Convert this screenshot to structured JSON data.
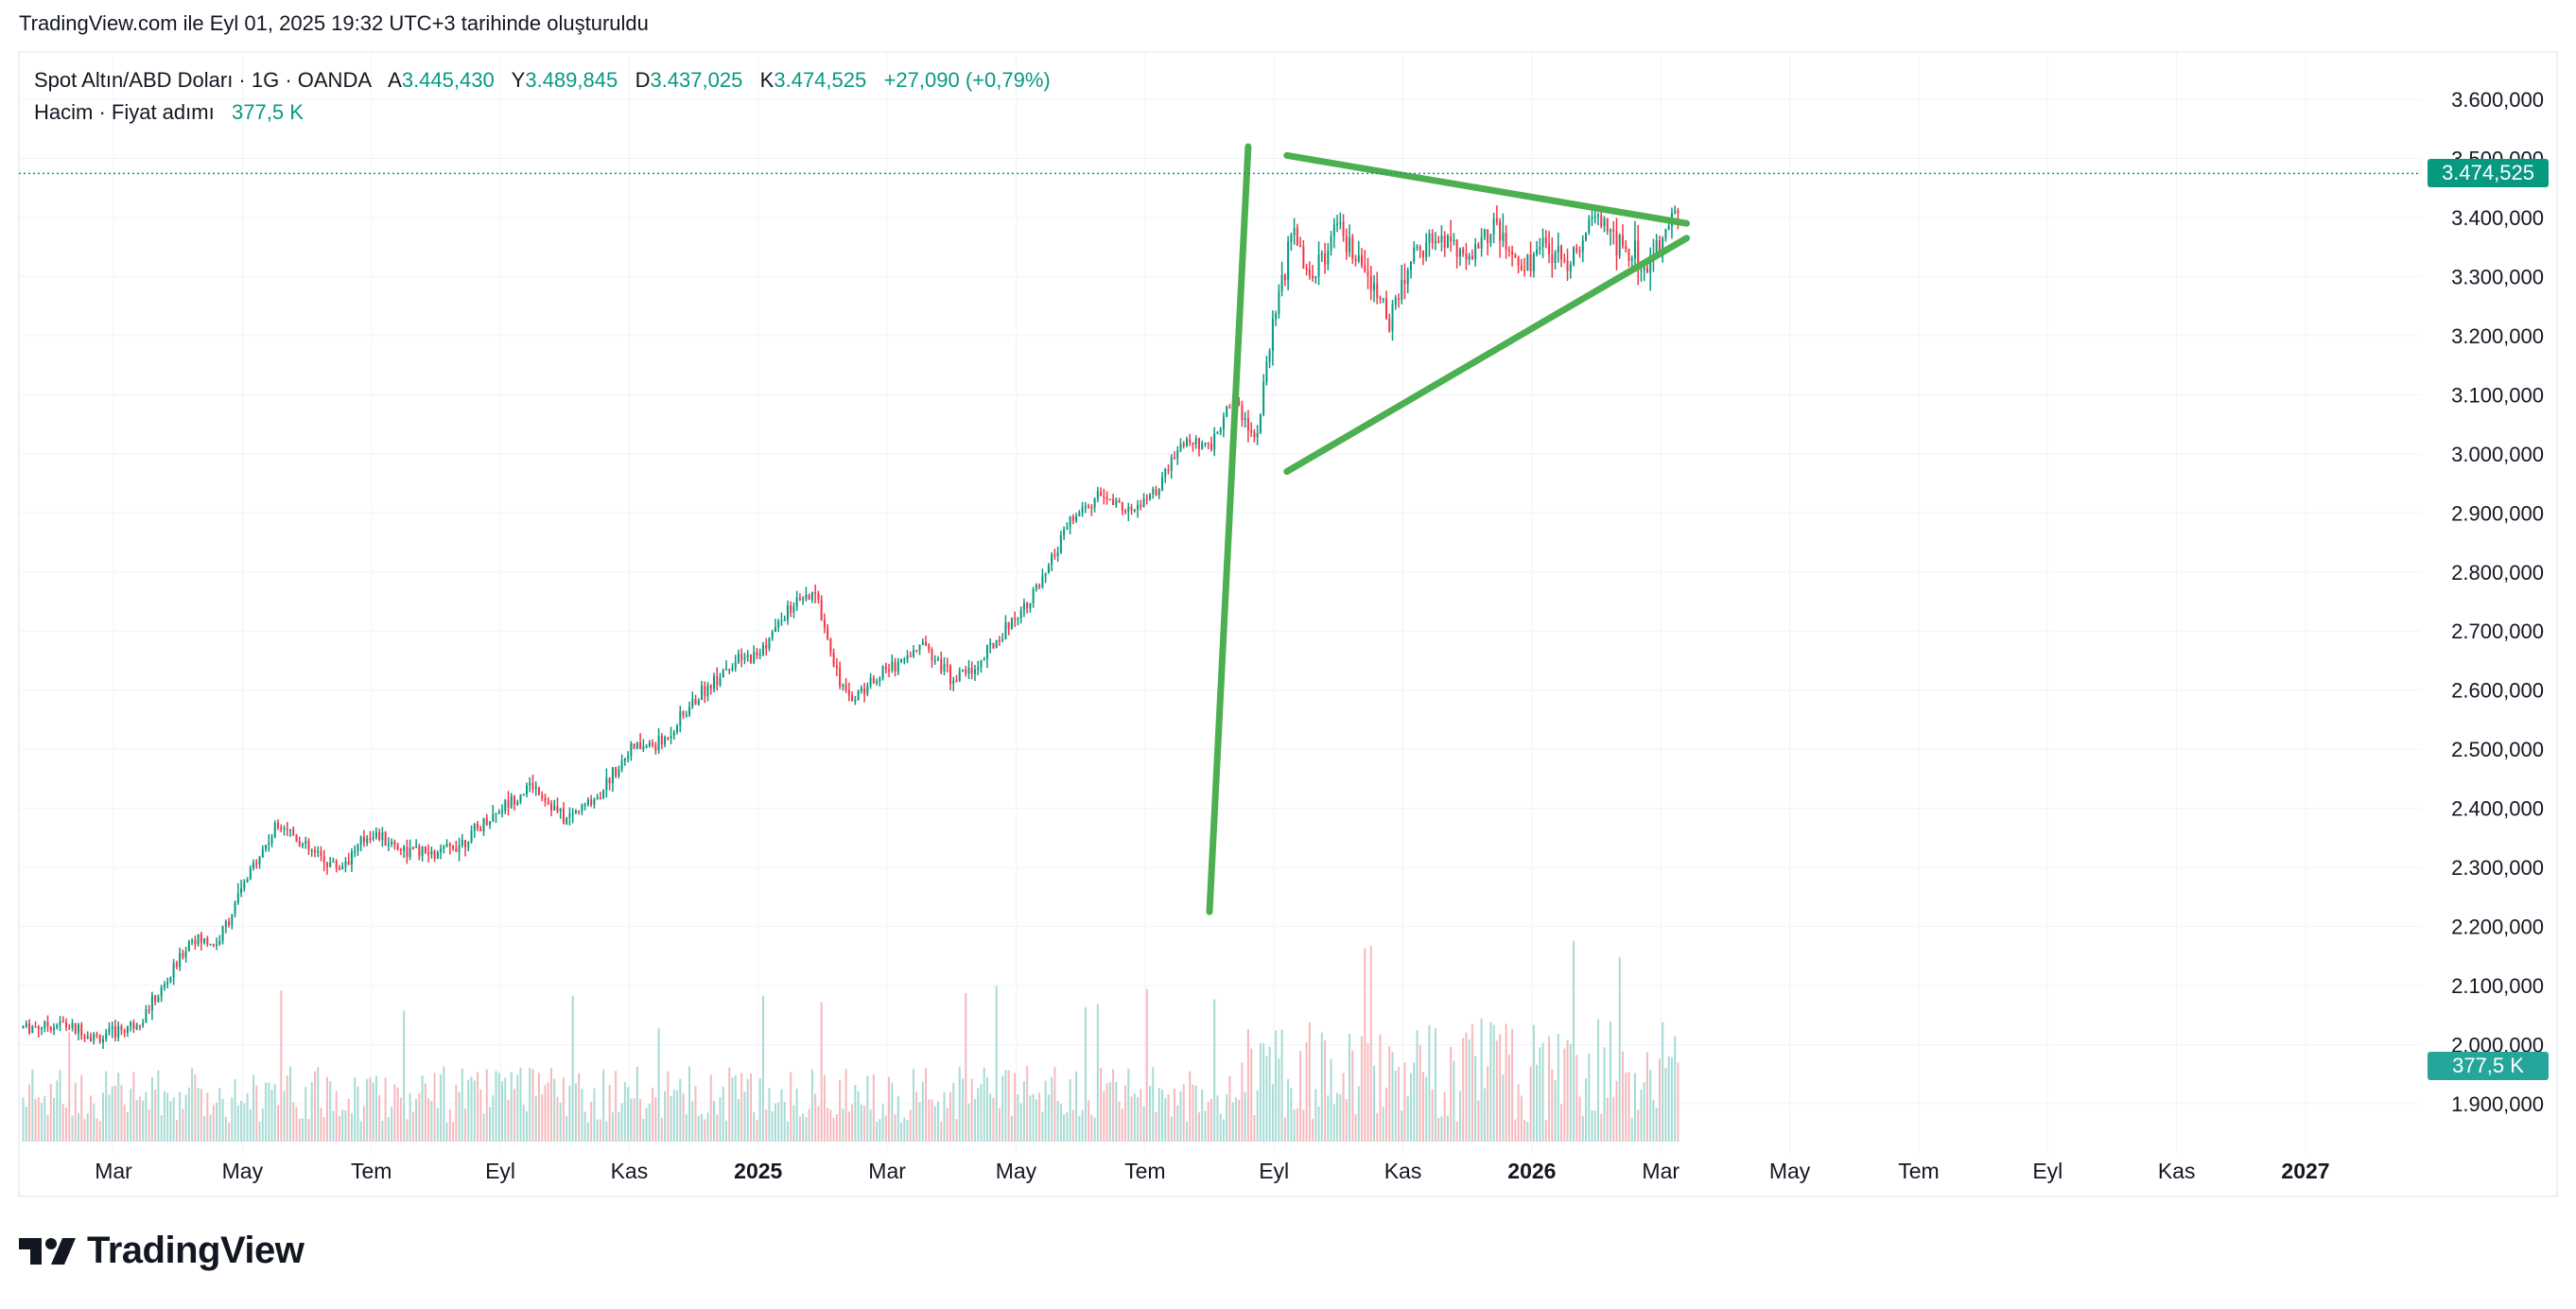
{
  "header": {
    "caption": "TradingView.com ile Eyl 01, 2025 19:32 UTC+3 tarihinde oluşturuldu"
  },
  "legend": {
    "symbol": "Spot Altın/ABD Doları · 1G · OANDA",
    "open_label": "A",
    "open": "3.445,430",
    "high_label": "Y",
    "high": "3.489,845",
    "low_label": "D",
    "low": "3.437,025",
    "close_label": "K",
    "close": "3.474,525",
    "change": "+27,090 (+0,79%)",
    "volume_label": "Hacim · Fiyat adımı",
    "volume": "377,5 K"
  },
  "badges": {
    "last_price": "3.474,525",
    "last_volume": "377,5 K"
  },
  "logo": {
    "text": "TradingView",
    "icon": "tradingview-logo-icon"
  },
  "colors": {
    "up": "#089981",
    "down": "#f23645",
    "up_volume": "#a7dbd4",
    "down_volume": "#f7b9bd",
    "drawing": "#4caf50",
    "grid": "#f0f3fa"
  },
  "chart_data": {
    "type": "candlestick",
    "interval": "1G",
    "y_axis": {
      "min": 1850000,
      "max": 3650000,
      "ticks": [
        1900000,
        2000000,
        2100000,
        2200000,
        2300000,
        2400000,
        2500000,
        2600000,
        2700000,
        2800000,
        2900000,
        3000000,
        3100000,
        3200000,
        3300000,
        3400000,
        3500000,
        3600000
      ],
      "tick_labels": [
        "1.900,000",
        "2.000,000",
        "2.100,000",
        "2.200,000",
        "2.300,000",
        "2.400,000",
        "2.500,000",
        "2.600,000",
        "2.700,000",
        "2.800,000",
        "2.900,000",
        "3.000,000",
        "3.100,000",
        "3.200,000",
        "3.300,000",
        "3.400,000",
        "3.500,000",
        "3.600,000"
      ]
    },
    "x_axis": {
      "labels": [
        {
          "text": "Mar",
          "bold": false,
          "month": 2
        },
        {
          "text": "May",
          "bold": false,
          "month": 4
        },
        {
          "text": "Tem",
          "bold": false,
          "month": 6
        },
        {
          "text": "Eyl",
          "bold": false,
          "month": 8
        },
        {
          "text": "Kas",
          "bold": false,
          "month": 10
        },
        {
          "text": "2025",
          "bold": true,
          "month": 12
        },
        {
          "text": "Mar",
          "bold": false,
          "month": 14
        },
        {
          "text": "May",
          "bold": false,
          "month": 16
        },
        {
          "text": "Tem",
          "bold": false,
          "month": 18
        },
        {
          "text": "Eyl",
          "bold": false,
          "month": 20
        },
        {
          "text": "Kas",
          "bold": false,
          "month": 22
        },
        {
          "text": "2026",
          "bold": true,
          "month": 24
        },
        {
          "text": "Mar",
          "bold": false,
          "month": 26
        },
        {
          "text": "May",
          "bold": false,
          "month": 28
        },
        {
          "text": "Tem",
          "bold": false,
          "month": 30
        },
        {
          "text": "Eyl",
          "bold": false,
          "month": 32
        },
        {
          "text": "Kas",
          "bold": false,
          "month": 34
        },
        {
          "text": "2027",
          "bold": true,
          "month": 36
        }
      ],
      "range_months": [
        0.6,
        38.2
      ]
    },
    "price_path": [
      [
        0.6,
        2030000
      ],
      [
        1.2,
        2035000
      ],
      [
        1.8,
        2010000
      ],
      [
        2.4,
        2040000
      ],
      [
        2.8,
        2100000
      ],
      [
        3.2,
        2180000
      ],
      [
        3.6,
        2170000
      ],
      [
        4.2,
        2310000
      ],
      [
        4.6,
        2380000
      ],
      [
        5.0,
        2330000
      ],
      [
        5.5,
        2300000
      ],
      [
        6.0,
        2360000
      ],
      [
        6.5,
        2330000
      ],
      [
        7.0,
        2320000
      ],
      [
        7.5,
        2350000
      ],
      [
        8.0,
        2400000
      ],
      [
        8.5,
        2440000
      ],
      [
        9.0,
        2380000
      ],
      [
        9.5,
        2420000
      ],
      [
        10.0,
        2500000
      ],
      [
        10.5,
        2510000
      ],
      [
        11.0,
        2580000
      ],
      [
        11.5,
        2640000
      ],
      [
        12.0,
        2660000
      ],
      [
        12.5,
        2740000
      ],
      [
        12.9,
        2760000
      ],
      [
        13.2,
        2640000
      ],
      [
        13.4,
        2580000
      ],
      [
        13.8,
        2620000
      ],
      [
        14.2,
        2650000
      ],
      [
        14.6,
        2680000
      ],
      [
        15.0,
        2620000
      ],
      [
        15.4,
        2640000
      ],
      [
        15.8,
        2700000
      ],
      [
        16.4,
        2780000
      ],
      [
        16.8,
        2880000
      ],
      [
        17.3,
        2930000
      ],
      [
        17.8,
        2900000
      ],
      [
        18.2,
        2940000
      ],
      [
        18.6,
        3020000
      ],
      [
        19.0,
        3010000
      ],
      [
        19.4,
        3100000
      ],
      [
        19.7,
        3020000
      ],
      [
        20.0,
        3220000
      ],
      [
        20.3,
        3380000
      ],
      [
        20.6,
        3300000
      ],
      [
        21.0,
        3380000
      ],
      [
        21.4,
        3300000
      ],
      [
        21.8,
        3230000
      ],
      [
        22.2,
        3350000
      ],
      [
        22.6,
        3370000
      ],
      [
        23.0,
        3330000
      ],
      [
        23.4,
        3390000
      ],
      [
        23.8,
        3310000
      ],
      [
        24.2,
        3350000
      ],
      [
        24.6,
        3330000
      ],
      [
        25.0,
        3400000
      ],
      [
        25.4,
        3350000
      ],
      [
        25.8,
        3320000
      ],
      [
        26.1,
        3370000
      ],
      [
        26.3,
        3440000
      ]
    ],
    "last_close": 3474525,
    "drawings": [
      {
        "name": "pole-line",
        "from": [
          19.0,
          2225000
        ],
        "to": [
          19.6,
          3520000
        ]
      },
      {
        "name": "upper-trendline",
        "from": [
          20.2,
          3505000
        ],
        "to": [
          26.4,
          3390000
        ]
      },
      {
        "name": "lower-trendline",
        "from": [
          20.2,
          2970000
        ],
        "to": [
          26.4,
          3365000
        ]
      }
    ]
  }
}
